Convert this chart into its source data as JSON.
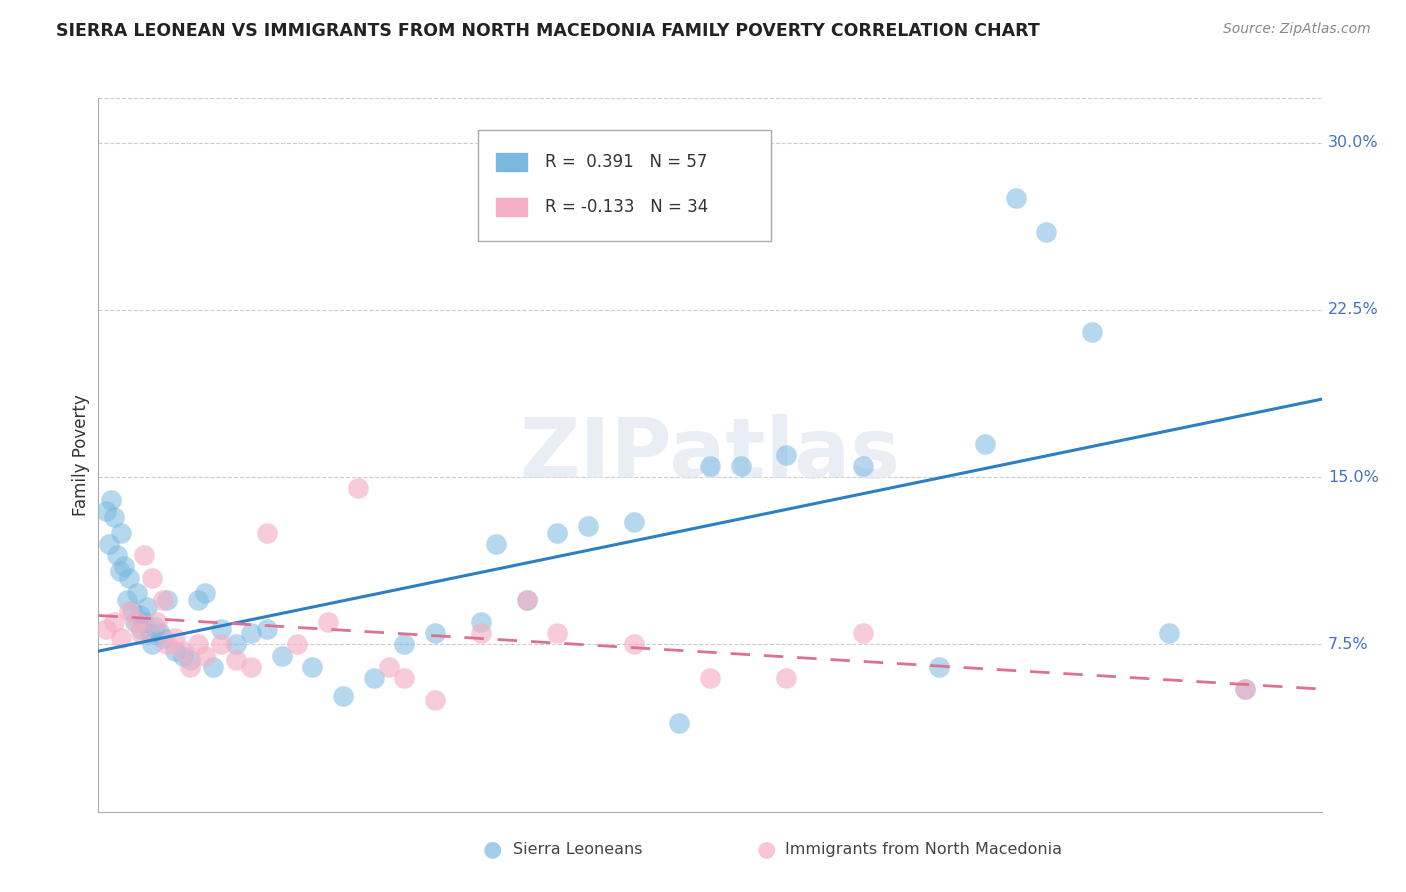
{
  "title": "SIERRA LEONEAN VS IMMIGRANTS FROM NORTH MACEDONIA FAMILY POVERTY CORRELATION CHART",
  "source": "Source: ZipAtlas.com",
  "ylabel": "Family Poverty",
  "ytick_labels": [
    "7.5%",
    "15.0%",
    "22.5%",
    "30.0%"
  ],
  "ytick_values": [
    7.5,
    15.0,
    22.5,
    30.0
  ],
  "xlim": [
    0.0,
    8.0
  ],
  "ylim": [
    0.0,
    32.0
  ],
  "legend1_R": "0.391",
  "legend1_N": "57",
  "legend2_R": "-0.133",
  "legend2_N": "34",
  "blue_color": "#7ab8e0",
  "pink_color": "#f4afc5",
  "blue_line_color": "#2d7fc1",
  "pink_line_color": "#e07090",
  "watermark": "ZIPatlas",
  "sierra_x": [
    0.05,
    0.07,
    0.08,
    0.1,
    0.12,
    0.14,
    0.15,
    0.17,
    0.19,
    0.2,
    0.22,
    0.24,
    0.25,
    0.27,
    0.28,
    0.3,
    0.32,
    0.34,
    0.35,
    0.37,
    0.4,
    0.42,
    0.45,
    0.5,
    0.55,
    0.6,
    0.65,
    0.7,
    0.75,
    0.8,
    0.9,
    1.0,
    1.1,
    1.2,
    1.4,
    1.6,
    1.8,
    2.0,
    2.2,
    2.5,
    2.8,
    3.0,
    3.5,
    3.8,
    4.0,
    4.5,
    5.0,
    5.5,
    5.8,
    6.0,
    6.2,
    6.5,
    7.0,
    7.5,
    4.2,
    3.2,
    2.6
  ],
  "sierra_y": [
    13.5,
    12.0,
    14.0,
    13.2,
    11.5,
    10.8,
    12.5,
    11.0,
    9.5,
    10.5,
    9.0,
    8.5,
    9.8,
    8.8,
    8.2,
    8.5,
    9.2,
    8.0,
    7.5,
    8.3,
    8.0,
    7.8,
    9.5,
    7.2,
    7.0,
    6.8,
    9.5,
    9.8,
    6.5,
    8.2,
    7.5,
    8.0,
    8.2,
    7.0,
    6.5,
    5.2,
    6.0,
    7.5,
    8.0,
    8.5,
    9.5,
    12.5,
    13.0,
    4.0,
    15.5,
    16.0,
    15.5,
    6.5,
    16.5,
    27.5,
    26.0,
    21.5,
    8.0,
    5.5,
    15.5,
    12.8,
    12.0
  ],
  "north_mac_x": [
    0.05,
    0.1,
    0.15,
    0.2,
    0.25,
    0.28,
    0.3,
    0.35,
    0.38,
    0.42,
    0.45,
    0.5,
    0.55,
    0.6,
    0.65,
    0.7,
    0.8,
    0.9,
    1.0,
    1.1,
    1.3,
    1.5,
    1.7,
    1.9,
    2.0,
    2.2,
    2.5,
    2.8,
    3.0,
    3.5,
    4.0,
    4.5,
    5.0,
    7.5
  ],
  "north_mac_y": [
    8.2,
    8.5,
    7.8,
    9.0,
    8.5,
    8.0,
    11.5,
    10.5,
    8.5,
    9.5,
    7.5,
    7.8,
    7.2,
    6.5,
    7.5,
    7.0,
    7.5,
    6.8,
    6.5,
    12.5,
    7.5,
    8.5,
    14.5,
    6.5,
    6.0,
    5.0,
    8.0,
    9.5,
    8.0,
    7.5,
    6.0,
    6.0,
    8.0,
    5.5
  ],
  "blue_line_x": [
    0.0,
    8.0
  ],
  "blue_line_y": [
    7.2,
    18.5
  ],
  "pink_line_x": [
    0.0,
    8.0
  ],
  "pink_line_y": [
    8.8,
    5.5
  ],
  "background_color": "#ffffff",
  "grid_color": "#cccccc"
}
